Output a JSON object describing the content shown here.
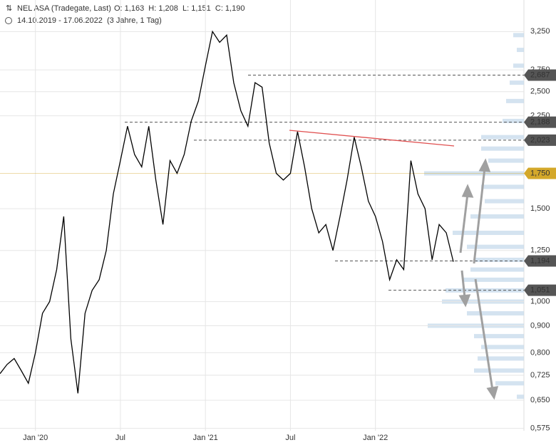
{
  "header": {
    "title": "NEL ASA (Tradegate, Last)",
    "quote": "O: 1,163  H: 1,208  L: 1,151  C: 1,190",
    "range": "14.10.2019 - 17.06.2022",
    "span": "(3 Jahre, 1 Tag)"
  },
  "chart_data": {
    "type": "line",
    "log_scale": true,
    "grid": true,
    "categories": [
      null,
      null,
      null,
      null,
      null,
      "Jan '20",
      null,
      null,
      null,
      null,
      null,
      null,
      null,
      null,
      null,
      null,
      null,
      "Jul",
      null,
      null,
      null,
      null,
      null,
      null,
      null,
      null,
      null,
      null,
      null,
      "Jan '21",
      null,
      null,
      null,
      null,
      null,
      null,
      null,
      null,
      null,
      null,
      null,
      "Jul",
      null,
      null,
      null,
      null,
      null,
      null,
      null,
      null,
      null,
      null,
      null,
      "Jan '22",
      null,
      null,
      null,
      null,
      null,
      null,
      null,
      null,
      null,
      null,
      null
    ],
    "series": [
      {
        "name": "NEL ASA",
        "color": "#000000",
        "values": [
          0.73,
          0.76,
          0.78,
          0.74,
          0.7,
          0.8,
          0.95,
          1.0,
          1.15,
          1.45,
          0.85,
          0.67,
          0.95,
          1.05,
          1.1,
          1.25,
          1.6,
          1.85,
          2.15,
          1.9,
          1.8,
          2.15,
          1.7,
          1.4,
          1.85,
          1.75,
          1.9,
          2.2,
          2.4,
          2.8,
          3.25,
          3.1,
          3.2,
          2.6,
          2.3,
          2.15,
          2.6,
          2.55,
          2.0,
          1.75,
          1.7,
          1.75,
          2.1,
          1.8,
          1.5,
          1.35,
          1.4,
          1.25,
          1.45,
          1.7,
          2.05,
          1.8,
          1.55,
          1.45,
          1.3,
          1.1,
          1.2,
          1.15,
          1.85,
          1.6,
          1.5,
          1.2,
          1.4,
          1.35,
          1.19
        ]
      }
    ],
    "ylim": [
      0.569,
      3.73
    ],
    "yticks": [
      {
        "value": 3.25,
        "label": "3,250"
      },
      {
        "value": 2.75,
        "label": "2,750"
      },
      {
        "value": 2.5,
        "label": "2,500"
      },
      {
        "value": 2.25,
        "label": "2,250"
      },
      {
        "value": 1.5,
        "label": "1,500"
      },
      {
        "value": 1.25,
        "label": "1,250"
      },
      {
        "value": 1.0,
        "label": "1,000"
      },
      {
        "value": 0.9,
        "label": "0,900"
      },
      {
        "value": 0.8,
        "label": "0,800"
      },
      {
        "value": 0.725,
        "label": "0,725"
      },
      {
        "value": 0.65,
        "label": "0,650"
      },
      {
        "value": 0.575,
        "label": "0,575"
      }
    ],
    "levels": {
      "values": [
        2.687,
        2.188,
        2.023,
        1.75,
        1.194,
        1.051
      ],
      "value_labels": [
        "2,687",
        "2,188",
        "2,023",
        "1,750",
        "1,194",
        "1,051"
      ],
      "colors": [
        "#555555",
        "#555555",
        "#555555",
        "#d4a82a",
        "#555555",
        "#555555"
      ]
    },
    "volume_profile": {
      "color": "#c9dcec",
      "prices": [
        0.66,
        0.7,
        0.74,
        0.78,
        0.82,
        0.86,
        0.9,
        0.95,
        1.0,
        1.05,
        1.1,
        1.15,
        1.2,
        1.27,
        1.35,
        1.45,
        1.55,
        1.65,
        1.75,
        1.85,
        1.95,
        2.05,
        2.2,
        2.4,
        2.6,
        2.8,
        3.0,
        3.2
      ],
      "values": [
        10,
        40,
        70,
        65,
        60,
        70,
        135,
        80,
        115,
        110,
        85,
        75,
        70,
        80,
        100,
        75,
        55,
        60,
        140,
        50,
        60,
        60,
        30,
        25,
        20,
        15,
        10,
        15
      ]
    }
  }
}
